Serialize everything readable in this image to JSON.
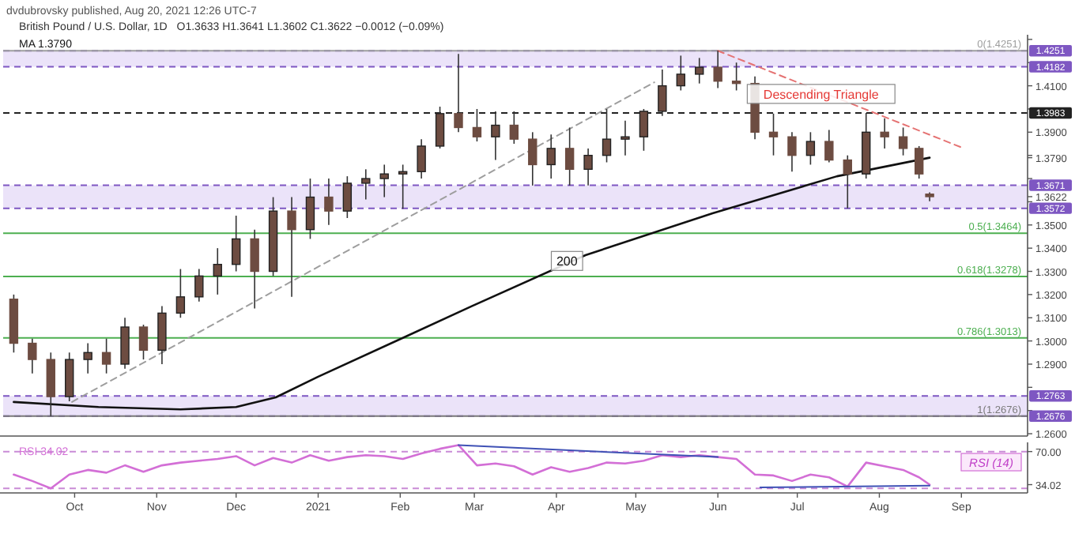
{
  "chart_data": [
    {
      "type": "candlestick",
      "title": "British Pound / U.S. Dollar, 1D",
      "subtitle": "O1.3633 H1.3641 L1.3602 C1.3622 −0.0012 (−0.09%)",
      "legend": "top left",
      "tick_labels": "y",
      "annotations": [
        "dvdubrovsky published, Aug 20, 2021 12:26 UTC-7",
        {
          "text": "200",
          "x": "2021-04-05",
          "y": 1.3345
        },
        {
          "text": "Descending Triangle",
          "x": "2021-07-10",
          "y": 1.4065
        }
      ],
      "xlim": [
        "2020-09-04",
        "2021-09-26"
      ],
      "ylim": [
        1.259,
        1.432
      ],
      "yticks": [
        {
          "value": 1.26,
          "label": "1.2600"
        },
        {
          "value": 1.27,
          "label": null
        },
        {
          "value": 1.28,
          "label": null
        },
        {
          "value": 1.29,
          "label": "1.2900"
        },
        {
          "value": 1.3,
          "label": "1.3000"
        },
        {
          "value": 1.31,
          "label": "1.3100"
        },
        {
          "value": 1.32,
          "label": "1.3200"
        },
        {
          "value": 1.33,
          "label": "1.3300"
        },
        {
          "value": 1.34,
          "label": "1.3400"
        },
        {
          "value": 1.35,
          "label": "1.3500"
        },
        {
          "value": 1.36,
          "label": null
        },
        {
          "value": 1.3622,
          "label": "1.3622"
        },
        {
          "value": 1.37,
          "label": null
        },
        {
          "value": 1.379,
          "label": "1.3790"
        },
        {
          "value": 1.38,
          "label": null
        },
        {
          "value": 1.39,
          "label": "1.3900"
        },
        {
          "value": 1.4,
          "label": null
        },
        {
          "value": 1.41,
          "label": "1.4100"
        },
        {
          "value": 1.42,
          "label": null
        },
        {
          "value": 1.43,
          "label": null
        }
      ],
      "bands": [
        {
          "axis": "y",
          "from": 1.4182,
          "to": 1.4251,
          "color": "#e6dcf7"
        },
        {
          "axis": "y",
          "from": 1.3572,
          "to": 1.3671,
          "color": "#e6dcf7"
        },
        {
          "axis": "y",
          "from": 1.2676,
          "to": 1.2763,
          "color": "#e6dcf7"
        }
      ],
      "ref_lines": [
        {
          "axis": "y",
          "value": 1.4251,
          "label": "1.4251",
          "color": "#7e57c2",
          "line_style": "dashed"
        },
        {
          "axis": "y",
          "value": 1.4182,
          "label": "1.4182",
          "color": "#7e57c2",
          "line_style": "dashed"
        },
        {
          "axis": "y",
          "value": 1.3983,
          "label": "1.3983",
          "color": "#222222",
          "line_style": "dashed"
        },
        {
          "axis": "y",
          "value": 1.3671,
          "label": "1.3671",
          "color": "#7e57c2",
          "line_style": "dashed"
        },
        {
          "axis": "y",
          "value": 1.3572,
          "label": "1.3572",
          "color": "#7e57c2",
          "line_style": "dashed"
        },
        {
          "axis": "y",
          "value": 1.2763,
          "label": "1.2763",
          "color": "#7e57c2",
          "line_style": "dashed"
        },
        {
          "axis": "y",
          "value": 1.2676,
          "label": "1.2676",
          "color": "#7e57c2",
          "line_style": "dashed"
        },
        {
          "axis": "y",
          "value": 1.4251,
          "label": "0(1.4251)",
          "color": "#9e9e9e",
          "line_style": "solid"
        },
        {
          "axis": "y",
          "value": 1.3464,
          "label": "0.5(1.3464)",
          "color": "#4caf50",
          "line_style": "solid"
        },
        {
          "axis": "y",
          "value": 1.3278,
          "label": "0.618(1.3278)",
          "color": "#4caf50",
          "line_style": "solid"
        },
        {
          "axis": "y",
          "value": 1.3013,
          "label": "0.786(1.3013)",
          "color": "#4caf50",
          "line_style": "solid"
        },
        {
          "axis": "y",
          "value": 1.2676,
          "label": "1(1.2676)",
          "color": "#787878",
          "line_style": "solid"
        }
      ],
      "series": [
        {
          "type": "line",
          "color": "#9e9e9e",
          "line_style": "dashed",
          "x": [
            "2020-09-30",
            "2021-05-08"
          ],
          "values": [
            1.2737,
            1.4115
          ]
        },
        {
          "type": "line",
          "color": "#e57373",
          "line_style": "dashed",
          "x": [
            "2021-06-01",
            "2021-09-02"
          ],
          "values": [
            1.4251,
            1.383
          ]
        },
        {
          "type": "line",
          "name": "MA 1.3790",
          "color": "#111111",
          "x": [
            "2020-09-08",
            "2020-10-10",
            "2020-11-10",
            "2020-12-01",
            "2020-12-16",
            "2021-01-01",
            "2021-02-01",
            "2021-02-28",
            "2021-04-12",
            "2021-05-30",
            "2021-07-16",
            "2021-08-20"
          ],
          "values": [
            1.2737,
            1.2715,
            1.2705,
            1.2715,
            1.2757,
            1.2846,
            1.3008,
            1.315,
            1.337,
            1.355,
            1.371,
            1.379
          ]
        },
        {
          "color": "#6d4c41",
          "x": [
            "2020-09-08",
            "2020-09-15",
            "2020-09-22",
            "2020-09-29",
            "2020-10-06",
            "2020-10-13",
            "2020-10-20",
            "2020-10-27",
            "2020-11-03",
            "2020-11-10",
            "2020-11-17",
            "2020-11-24",
            "2020-12-01",
            "2020-12-08",
            "2020-12-15",
            "2020-12-22",
            "2020-12-29",
            "2021-01-05",
            "2021-01-12",
            "2021-01-19",
            "2021-01-26",
            "2021-02-02",
            "2021-02-09",
            "2021-02-16",
            "2021-02-23",
            "2021-03-02",
            "2021-03-09",
            "2021-03-16",
            "2021-03-23",
            "2021-03-30",
            "2021-04-06",
            "2021-04-13",
            "2021-04-20",
            "2021-04-27",
            "2021-05-04",
            "2021-05-11",
            "2021-05-18",
            "2021-05-25",
            "2021-06-01",
            "2021-06-08",
            "2021-06-15",
            "2021-06-22",
            "2021-06-29",
            "2021-07-06",
            "2021-07-13",
            "2021-07-20",
            "2021-07-27",
            "2021-08-03",
            "2021-08-10",
            "2021-08-16",
            "2021-08-20"
          ],
          "ohlc": [
            [
              1.318,
              1.32,
              1.295,
              1.299
            ],
            [
              1.299,
              1.301,
              1.286,
              1.292
            ],
            [
              1.292,
              1.295,
              1.2676,
              1.276
            ],
            [
              1.276,
              1.295,
              1.274,
              1.292
            ],
            [
              1.292,
              1.299,
              1.286,
              1.295
            ],
            [
              1.295,
              1.301,
              1.286,
              1.29
            ],
            [
              1.29,
              1.31,
              1.288,
              1.306
            ],
            [
              1.306,
              1.307,
              1.292,
              1.296
            ],
            [
              1.296,
              1.315,
              1.29,
              1.312
            ],
            [
              1.312,
              1.331,
              1.31,
              1.319
            ],
            [
              1.319,
              1.331,
              1.317,
              1.328
            ],
            [
              1.328,
              1.34,
              1.32,
              1.333
            ],
            [
              1.333,
              1.354,
              1.33,
              1.344
            ],
            [
              1.344,
              1.348,
              1.314,
              1.33
            ],
            [
              1.33,
              1.362,
              1.328,
              1.356
            ],
            [
              1.356,
              1.362,
              1.319,
              1.348
            ],
            [
              1.348,
              1.37,
              1.344,
              1.362
            ],
            [
              1.362,
              1.37,
              1.35,
              1.356
            ],
            [
              1.356,
              1.371,
              1.353,
              1.368
            ],
            [
              1.368,
              1.374,
              1.361,
              1.37
            ],
            [
              1.37,
              1.376,
              1.362,
              1.372
            ],
            [
              1.372,
              1.376,
              1.357,
              1.373
            ],
            [
              1.373,
              1.387,
              1.37,
              1.384
            ],
            [
              1.384,
              1.401,
              1.383,
              1.398
            ],
            [
              1.398,
              1.4237,
              1.39,
              1.392
            ],
            [
              1.392,
              1.4,
              1.386,
              1.388
            ],
            [
              1.388,
              1.399,
              1.378,
              1.393
            ],
            [
              1.393,
              1.399,
              1.385,
              1.387
            ],
            [
              1.387,
              1.39,
              1.367,
              1.376
            ],
            [
              1.376,
              1.389,
              1.37,
              1.383
            ],
            [
              1.383,
              1.392,
              1.367,
              1.374
            ],
            [
              1.374,
              1.383,
              1.367,
              1.38
            ],
            [
              1.38,
              1.4,
              1.377,
              1.387
            ],
            [
              1.387,
              1.395,
              1.38,
              1.388
            ],
            [
              1.388,
              1.4,
              1.382,
              1.399
            ],
            [
              1.399,
              1.417,
              1.397,
              1.41
            ],
            [
              1.41,
              1.423,
              1.408,
              1.415
            ],
            [
              1.415,
              1.422,
              1.411,
              1.418
            ],
            [
              1.418,
              1.4251,
              1.409,
              1.412
            ],
            [
              1.412,
              1.42,
              1.408,
              1.411
            ],
            [
              1.411,
              1.414,
              1.387,
              1.39
            ],
            [
              1.39,
              1.398,
              1.38,
              1.388
            ],
            [
              1.388,
              1.39,
              1.373,
              1.38
            ],
            [
              1.38,
              1.39,
              1.376,
              1.386
            ],
            [
              1.386,
              1.391,
              1.377,
              1.378
            ],
            [
              1.378,
              1.38,
              1.3572,
              1.372
            ],
            [
              1.372,
              1.3983,
              1.37,
              1.39
            ],
            [
              1.39,
              1.396,
              1.383,
              1.388
            ],
            [
              1.388,
              1.392,
              1.38,
              1.383
            ],
            [
              1.383,
              1.384,
              1.37,
              1.372
            ],
            [
              1.3633,
              1.3641,
              1.3602,
              1.3622
            ]
          ]
        }
      ]
    },
    {
      "type": "line",
      "legend": "top left",
      "annotations": [
        "RSI (14)"
      ],
      "xlim": [
        "2020-09-04",
        "2021-09-26"
      ],
      "xticks": [
        {
          "value": "2020-10-01",
          "label": "Oct"
        },
        {
          "value": "2020-11-01",
          "label": "Nov"
        },
        {
          "value": "2020-12-01",
          "label": "Dec"
        },
        {
          "value": "2021-01-01",
          "label": "2021"
        },
        {
          "value": "2021-02-01",
          "label": "Feb"
        },
        {
          "value": "2021-03-01",
          "label": "Mar"
        },
        {
          "value": "2021-04-01",
          "label": "Apr"
        },
        {
          "value": "2021-05-01",
          "label": "May"
        },
        {
          "value": "2021-06-01",
          "label": "Jun"
        },
        {
          "value": "2021-07-01",
          "label": "Jul"
        },
        {
          "value": "2021-08-01",
          "label": "Aug"
        },
        {
          "value": "2021-09-01",
          "label": "Sep"
        }
      ],
      "ylim": [
        25,
        80
      ],
      "yticks": [
        {
          "value": 34.02,
          "label": "34.02"
        },
        {
          "value": 70,
          "label": "70.00"
        }
      ],
      "ref_lines": [
        {
          "axis": "y",
          "value": 70,
          "color": "#c98bd6",
          "line_style": "dashed"
        },
        {
          "axis": "y",
          "value": 30,
          "color": "#c98bd6",
          "line_style": "dashed"
        }
      ],
      "series": [
        {
          "name": "RSI 34.02",
          "color": "#d36fd6",
          "x": [
            "2020-09-08",
            "2020-09-15",
            "2020-09-22",
            "2020-09-29",
            "2020-10-06",
            "2020-10-13",
            "2020-10-20",
            "2020-10-27",
            "2020-11-03",
            "2020-11-10",
            "2020-11-17",
            "2020-11-24",
            "2020-12-01",
            "2020-12-08",
            "2020-12-15",
            "2020-12-22",
            "2020-12-29",
            "2021-01-05",
            "2021-01-12",
            "2021-01-19",
            "2021-01-26",
            "2021-02-02",
            "2021-02-09",
            "2021-02-16",
            "2021-02-23",
            "2021-03-02",
            "2021-03-09",
            "2021-03-16",
            "2021-03-23",
            "2021-03-30",
            "2021-04-06",
            "2021-04-13",
            "2021-04-20",
            "2021-04-27",
            "2021-05-04",
            "2021-05-11",
            "2021-05-18",
            "2021-05-25",
            "2021-06-01",
            "2021-06-08",
            "2021-06-15",
            "2021-06-22",
            "2021-06-29",
            "2021-07-06",
            "2021-07-13",
            "2021-07-20",
            "2021-07-27",
            "2021-08-03",
            "2021-08-10",
            "2021-08-16",
            "2021-08-20"
          ],
          "values": [
            45,
            38,
            30,
            45,
            50,
            47,
            55,
            48,
            55,
            58,
            60,
            62,
            65,
            55,
            63,
            58,
            66,
            60,
            64,
            66,
            65,
            62,
            68,
            73,
            77,
            55,
            57,
            54,
            45,
            53,
            48,
            52,
            58,
            57,
            60,
            66,
            64,
            66,
            64,
            62,
            45,
            44,
            38,
            45,
            42,
            32,
            58,
            54,
            50,
            42,
            34.02
          ]
        },
        {
          "color": "#3f51b5",
          "x": [
            "2021-02-23",
            "2021-06-01"
          ],
          "values": [
            77,
            64
          ]
        },
        {
          "color": "#3f51b5",
          "x": [
            "2021-06-17",
            "2021-08-20"
          ],
          "values": [
            31,
            33
          ]
        }
      ]
    }
  ]
}
